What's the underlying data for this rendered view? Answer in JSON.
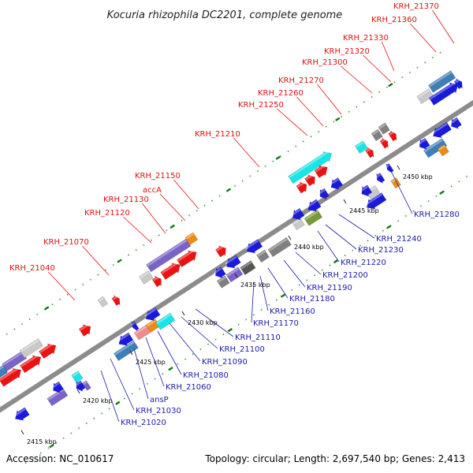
{
  "title": "Kocuria rhizophila DC2201, complete genome",
  "accession_text": "Accession: NC_010617",
  "summary_text": "Topology: circular; Length: 2,697,540 bp; Genes: 2,413",
  "colors": {
    "red": "#ee1111",
    "blue": "#1a1adc",
    "steel": "#3f7fb8",
    "cyan": "#18e6e6",
    "gray": "#808080",
    "lightgray": "#c9c9c9",
    "darkgray": "#555555",
    "orange": "#ee8a10",
    "violet": "#7a63c8",
    "pink": "#ee8c8c",
    "olive": "#7a9a3a",
    "green_tick": "#117711",
    "forward_label": "#dd1111",
    "reverse_label": "#1c1caa",
    "backbone": "#8c8c8c"
  },
  "kbp_ticks": [
    {
      "label": "2415 kbp"
    },
    {
      "label": "2420 kbp"
    },
    {
      "label": "2425 kbp"
    },
    {
      "label": "2430 kbp"
    },
    {
      "label": "2435 kbp"
    },
    {
      "label": "2440 kbp"
    },
    {
      "label": "2445 kbp"
    },
    {
      "label": "2450 kbp"
    }
  ],
  "forward_labels": [
    "KRH_21040",
    "KRH_21070",
    "KRH_21120",
    "KRH_21130",
    "accA",
    "KRH_21150",
    "KRH_21210",
    "KRH_21250",
    "KRH_21260",
    "KRH_21270",
    "KRH_21300",
    "KRH_21320",
    "KRH_21330",
    "KRH_21360",
    "KRH_21370"
  ],
  "reverse_labels": [
    "KRH_21020",
    "KRH_21030",
    "ansP",
    "KRH_21060",
    "KRH_21080",
    "KRH_21090",
    "KRH_21100",
    "KRH_21110",
    "KRH_21170",
    "KRH_21160",
    "KRH_21180",
    "KRH_21190",
    "KRH_21200",
    "KRH_21220",
    "KRH_21230",
    "KRH_21240",
    "KRH_21280"
  ]
}
